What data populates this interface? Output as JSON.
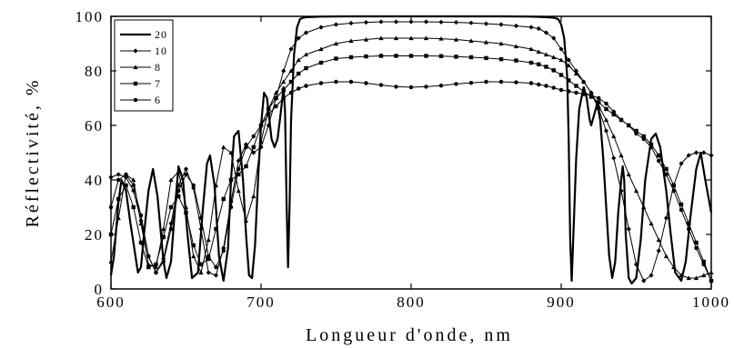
{
  "chart_data": {
    "type": "line",
    "xlabel": "Longueur d'onde, nm",
    "ylabel": "Réflectivité, %",
    "xlim": [
      600,
      1000
    ],
    "ylim": [
      0,
      100
    ],
    "xticks": [
      "600",
      "700",
      "800",
      "900",
      "1000"
    ],
    "yticks": [
      "0",
      "20",
      "40",
      "60",
      "80",
      "100"
    ],
    "grid": false,
    "legend_position": "top-left",
    "series": [
      {
        "name": "20",
        "marker": "none",
        "line_width": 2.2,
        "x": [
          600,
          602,
          605,
          607,
          610,
          613,
          618,
          620,
          622,
          625,
          628,
          631,
          635,
          637,
          640,
          643,
          645,
          648,
          651,
          654,
          658,
          661,
          664,
          666,
          669,
          672,
          675,
          678,
          680,
          682,
          685,
          688,
          690,
          692,
          694,
          696,
          698,
          700,
          702,
          704,
          706,
          707,
          709,
          711,
          713,
          715,
          716,
          717,
          718,
          719,
          720,
          722,
          724,
          726,
          728,
          730,
          740,
          760,
          780,
          800,
          820,
          840,
          860,
          880,
          890,
          895,
          898,
          900,
          902,
          904,
          905,
          906,
          907,
          908,
          910,
          912,
          915,
          917,
          919,
          920,
          922,
          924,
          926,
          928,
          930,
          932,
          934,
          936,
          938,
          940,
          941,
          942,
          943,
          945,
          947,
          950,
          953,
          956,
          960,
          963,
          966,
          970,
          973,
          976,
          980,
          983,
          986,
          990,
          993,
          996,
          1000
        ],
        "y": [
          5,
          12,
          32,
          40,
          36,
          24,
          6,
          8,
          20,
          36,
          44,
          34,
          10,
          4,
          10,
          32,
          45,
          40,
          20,
          4,
          6,
          28,
          46,
          49,
          38,
          12,
          3,
          15,
          40,
          56,
          58,
          40,
          20,
          5,
          4,
          16,
          40,
          60,
          72,
          70,
          60,
          55,
          52,
          55,
          64,
          74,
          65,
          32,
          8,
          30,
          62,
          86,
          96,
          99,
          99.5,
          99.7,
          99.9,
          100,
          100,
          100,
          100,
          100,
          100,
          99.9,
          99.7,
          99.5,
          99,
          97,
          92,
          78,
          55,
          18,
          3,
          18,
          48,
          66,
          74,
          70,
          62,
          60,
          64,
          68,
          62,
          48,
          30,
          12,
          4,
          10,
          28,
          40,
          45,
          40,
          20,
          4,
          2,
          4,
          18,
          40,
          55,
          57,
          52,
          36,
          20,
          6,
          3,
          10,
          26,
          44,
          50,
          40,
          28
        ]
      },
      {
        "name": "10",
        "marker": "diamond",
        "line_width": 1,
        "x": [
          600,
          605,
          610,
          615,
          620,
          625,
          630,
          635,
          640,
          645,
          650,
          655,
          660,
          665,
          670,
          675,
          680,
          685,
          690,
          695,
          700,
          705,
          710,
          715,
          720,
          725,
          730,
          740,
          750,
          760,
          770,
          780,
          790,
          800,
          810,
          820,
          830,
          840,
          850,
          860,
          870,
          880,
          885,
          890,
          895,
          900,
          905,
          910,
          915,
          920,
          925,
          930,
          935,
          940,
          945,
          950,
          955,
          960,
          965,
          970,
          975,
          980,
          985,
          990,
          995,
          1000
        ],
        "y": [
          41,
          42,
          41,
          36,
          25,
          12,
          6,
          11,
          24,
          38,
          44,
          37,
          22,
          6,
          5,
          15,
          32,
          47,
          53,
          50,
          52,
          60,
          70,
          80,
          88,
          92,
          94,
          96,
          97,
          97.5,
          97.8,
          98,
          98,
          98,
          98,
          97.9,
          97.8,
          97.6,
          97.3,
          97,
          96.5,
          96,
          95.5,
          94,
          92,
          88,
          84,
          80,
          76,
          72,
          66,
          58,
          48,
          36,
          22,
          9,
          3,
          5,
          14,
          26,
          38,
          46,
          49,
          50,
          50,
          49
        ]
      },
      {
        "name": "8",
        "marker": "triangle",
        "line_width": 1,
        "x": [
          600,
          605,
          610,
          615,
          620,
          625,
          630,
          635,
          640,
          645,
          650,
          655,
          660,
          665,
          670,
          675,
          680,
          685,
          690,
          695,
          700,
          705,
          710,
          715,
          720,
          725,
          730,
          740,
          750,
          760,
          770,
          780,
          790,
          800,
          810,
          820,
          830,
          840,
          850,
          860,
          870,
          880,
          885,
          890,
          895,
          900,
          905,
          910,
          915,
          920,
          925,
          930,
          935,
          940,
          945,
          950,
          955,
          960,
          965,
          970,
          975,
          980,
          985,
          990,
          995,
          1000
        ],
        "y": [
          10,
          26,
          42,
          40,
          24,
          9,
          8,
          22,
          40,
          43,
          30,
          12,
          6,
          18,
          38,
          52,
          50,
          36,
          25,
          34,
          54,
          66,
          72,
          76,
          80,
          84,
          86,
          88,
          90,
          91,
          91.5,
          92,
          92,
          92,
          92,
          91.8,
          91.5,
          91,
          90.5,
          90,
          89,
          88,
          87,
          86,
          85,
          84,
          82,
          79,
          76,
          72,
          67,
          62,
          56,
          49,
          42,
          36,
          30,
          24,
          18,
          12,
          8,
          5,
          4,
          4,
          5,
          6
        ]
      },
      {
        "name": "7",
        "marker": "square",
        "line_width": 1,
        "x": [
          600,
          605,
          610,
          615,
          620,
          625,
          630,
          635,
          640,
          645,
          650,
          655,
          660,
          665,
          670,
          675,
          680,
          685,
          690,
          695,
          700,
          705,
          710,
          715,
          720,
          725,
          730,
          740,
          750,
          760,
          770,
          780,
          790,
          800,
          810,
          820,
          830,
          840,
          850,
          860,
          870,
          880,
          885,
          890,
          895,
          900,
          905,
          910,
          915,
          920,
          925,
          930,
          935,
          940,
          945,
          950,
          955,
          960,
          965,
          970,
          975,
          980,
          985,
          990,
          995,
          1000
        ],
        "y": [
          20,
          33,
          38,
          30,
          17,
          8,
          9,
          19,
          30,
          34,
          28,
          16,
          9,
          11,
          22,
          33,
          40,
          42,
          45,
          52,
          60,
          66,
          70,
          73,
          76,
          79,
          81,
          83,
          84.5,
          85,
          85.3,
          85.5,
          85.5,
          85.5,
          85.5,
          85.4,
          85.2,
          85,
          84.7,
          84.3,
          83.8,
          83,
          82.4,
          81.5,
          80.2,
          78.5,
          76.5,
          74.5,
          72.5,
          70.5,
          68.5,
          66,
          64,
          62,
          60,
          58,
          56,
          53,
          49,
          44,
          38,
          31,
          24,
          17,
          10,
          3
        ]
      },
      {
        "name": "6",
        "marker": "circle",
        "line_width": 1,
        "x": [
          600,
          605,
          610,
          615,
          620,
          625,
          630,
          635,
          640,
          645,
          650,
          655,
          660,
          665,
          670,
          675,
          680,
          685,
          690,
          695,
          700,
          705,
          710,
          715,
          720,
          725,
          730,
          740,
          750,
          760,
          770,
          780,
          790,
          800,
          810,
          820,
          830,
          840,
          850,
          860,
          870,
          880,
          885,
          890,
          895,
          900,
          905,
          910,
          915,
          920,
          925,
          930,
          935,
          940,
          945,
          950,
          955,
          960,
          965,
          970,
          975,
          980,
          985,
          990,
          995,
          1000
        ],
        "y": [
          30,
          40,
          42,
          38,
          27,
          12,
          6,
          10,
          22,
          36,
          42,
          38,
          26,
          12,
          8,
          14,
          30,
          44,
          52,
          56,
          60,
          64,
          67,
          70,
          72,
          73.5,
          74.5,
          75.5,
          76,
          76,
          75.5,
          74.8,
          74.2,
          74,
          74.2,
          74.6,
          75.2,
          75.6,
          76,
          76,
          75.8,
          75.5,
          75,
          74.5,
          73.8,
          73,
          72.5,
          72,
          71.5,
          71,
          70,
          68,
          65,
          62,
          60,
          57,
          55,
          52,
          47,
          42,
          36,
          29,
          22,
          15,
          9,
          3
        ]
      }
    ]
  }
}
